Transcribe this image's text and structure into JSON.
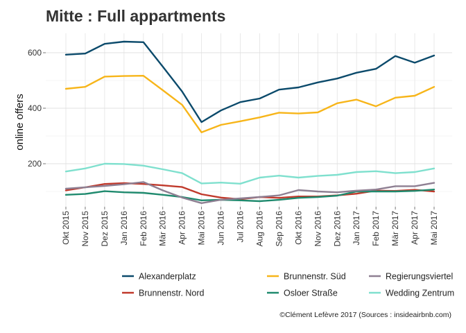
{
  "chart_data": {
    "type": "line",
    "title": "Mitte : Full appartments",
    "xlabel": "",
    "ylabel": "online offers",
    "ylim": [
      45,
      670
    ],
    "yticks": [
      200,
      400,
      600
    ],
    "grid": true,
    "legend_position": "bottom",
    "categories": [
      "Okt 2015",
      "Nov 2015",
      "Dez 2015",
      "Jan 2016",
      "Feb 2016",
      "Mär 2016",
      "Apr 2016",
      "Mai 2016",
      "Jun 2016",
      "Jul 2016",
      "Aug 2016",
      "Sep 2016",
      "Okt 2016",
      "Nov 2016",
      "Dez 2016",
      "Jan 2017",
      "Feb 2017",
      "Mär 2017",
      "Apr 2017",
      "Mai 2017"
    ],
    "series": [
      {
        "name": "Alexanderplatz",
        "color": "#0b4a6b",
        "values": [
          593,
          597,
          632,
          640,
          638,
          550,
          460,
          350,
          392,
          422,
          435,
          467,
          475,
          493,
          507,
          528,
          542,
          588,
          564,
          590
        ]
      },
      {
        "name": "Brunnenstr. Nord",
        "color": "#c0392b",
        "values": [
          104,
          115,
          127,
          130,
          127,
          122,
          116,
          90,
          78,
          72,
          80,
          77,
          82,
          82,
          86,
          92,
          103,
          102,
          106,
          100
        ]
      },
      {
        "name": "Brunnenstr. Süd",
        "color": "#f7b519",
        "values": [
          470,
          477,
          514,
          516,
          517,
          465,
          412,
          313,
          340,
          353,
          367,
          384,
          381,
          385,
          418,
          431,
          407,
          438,
          445,
          477
        ]
      },
      {
        "name": "Osloer Straße",
        "color": "#1f8a6e",
        "values": [
          88,
          91,
          101,
          97,
          95,
          88,
          80,
          68,
          70,
          68,
          65,
          70,
          77,
          80,
          85,
          100,
          100,
          100,
          102,
          107
        ]
      },
      {
        "name": "Regierungsviertel",
        "color": "#8e7f92",
        "values": [
          110,
          115,
          120,
          126,
          134,
          104,
          78,
          58,
          70,
          75,
          80,
          86,
          105,
          100,
          97,
          103,
          107,
          119,
          119,
          131
        ]
      },
      {
        "name": "Wedding Zentrum",
        "color": "#7fe0ce",
        "values": [
          172,
          183,
          200,
          199,
          193,
          180,
          166,
          129,
          132,
          128,
          150,
          157,
          150,
          156,
          160,
          170,
          173,
          166,
          170,
          183
        ]
      }
    ],
    "caption": "©Clément Lefèvre 2017 (Sources : insideairbnb.com)"
  }
}
